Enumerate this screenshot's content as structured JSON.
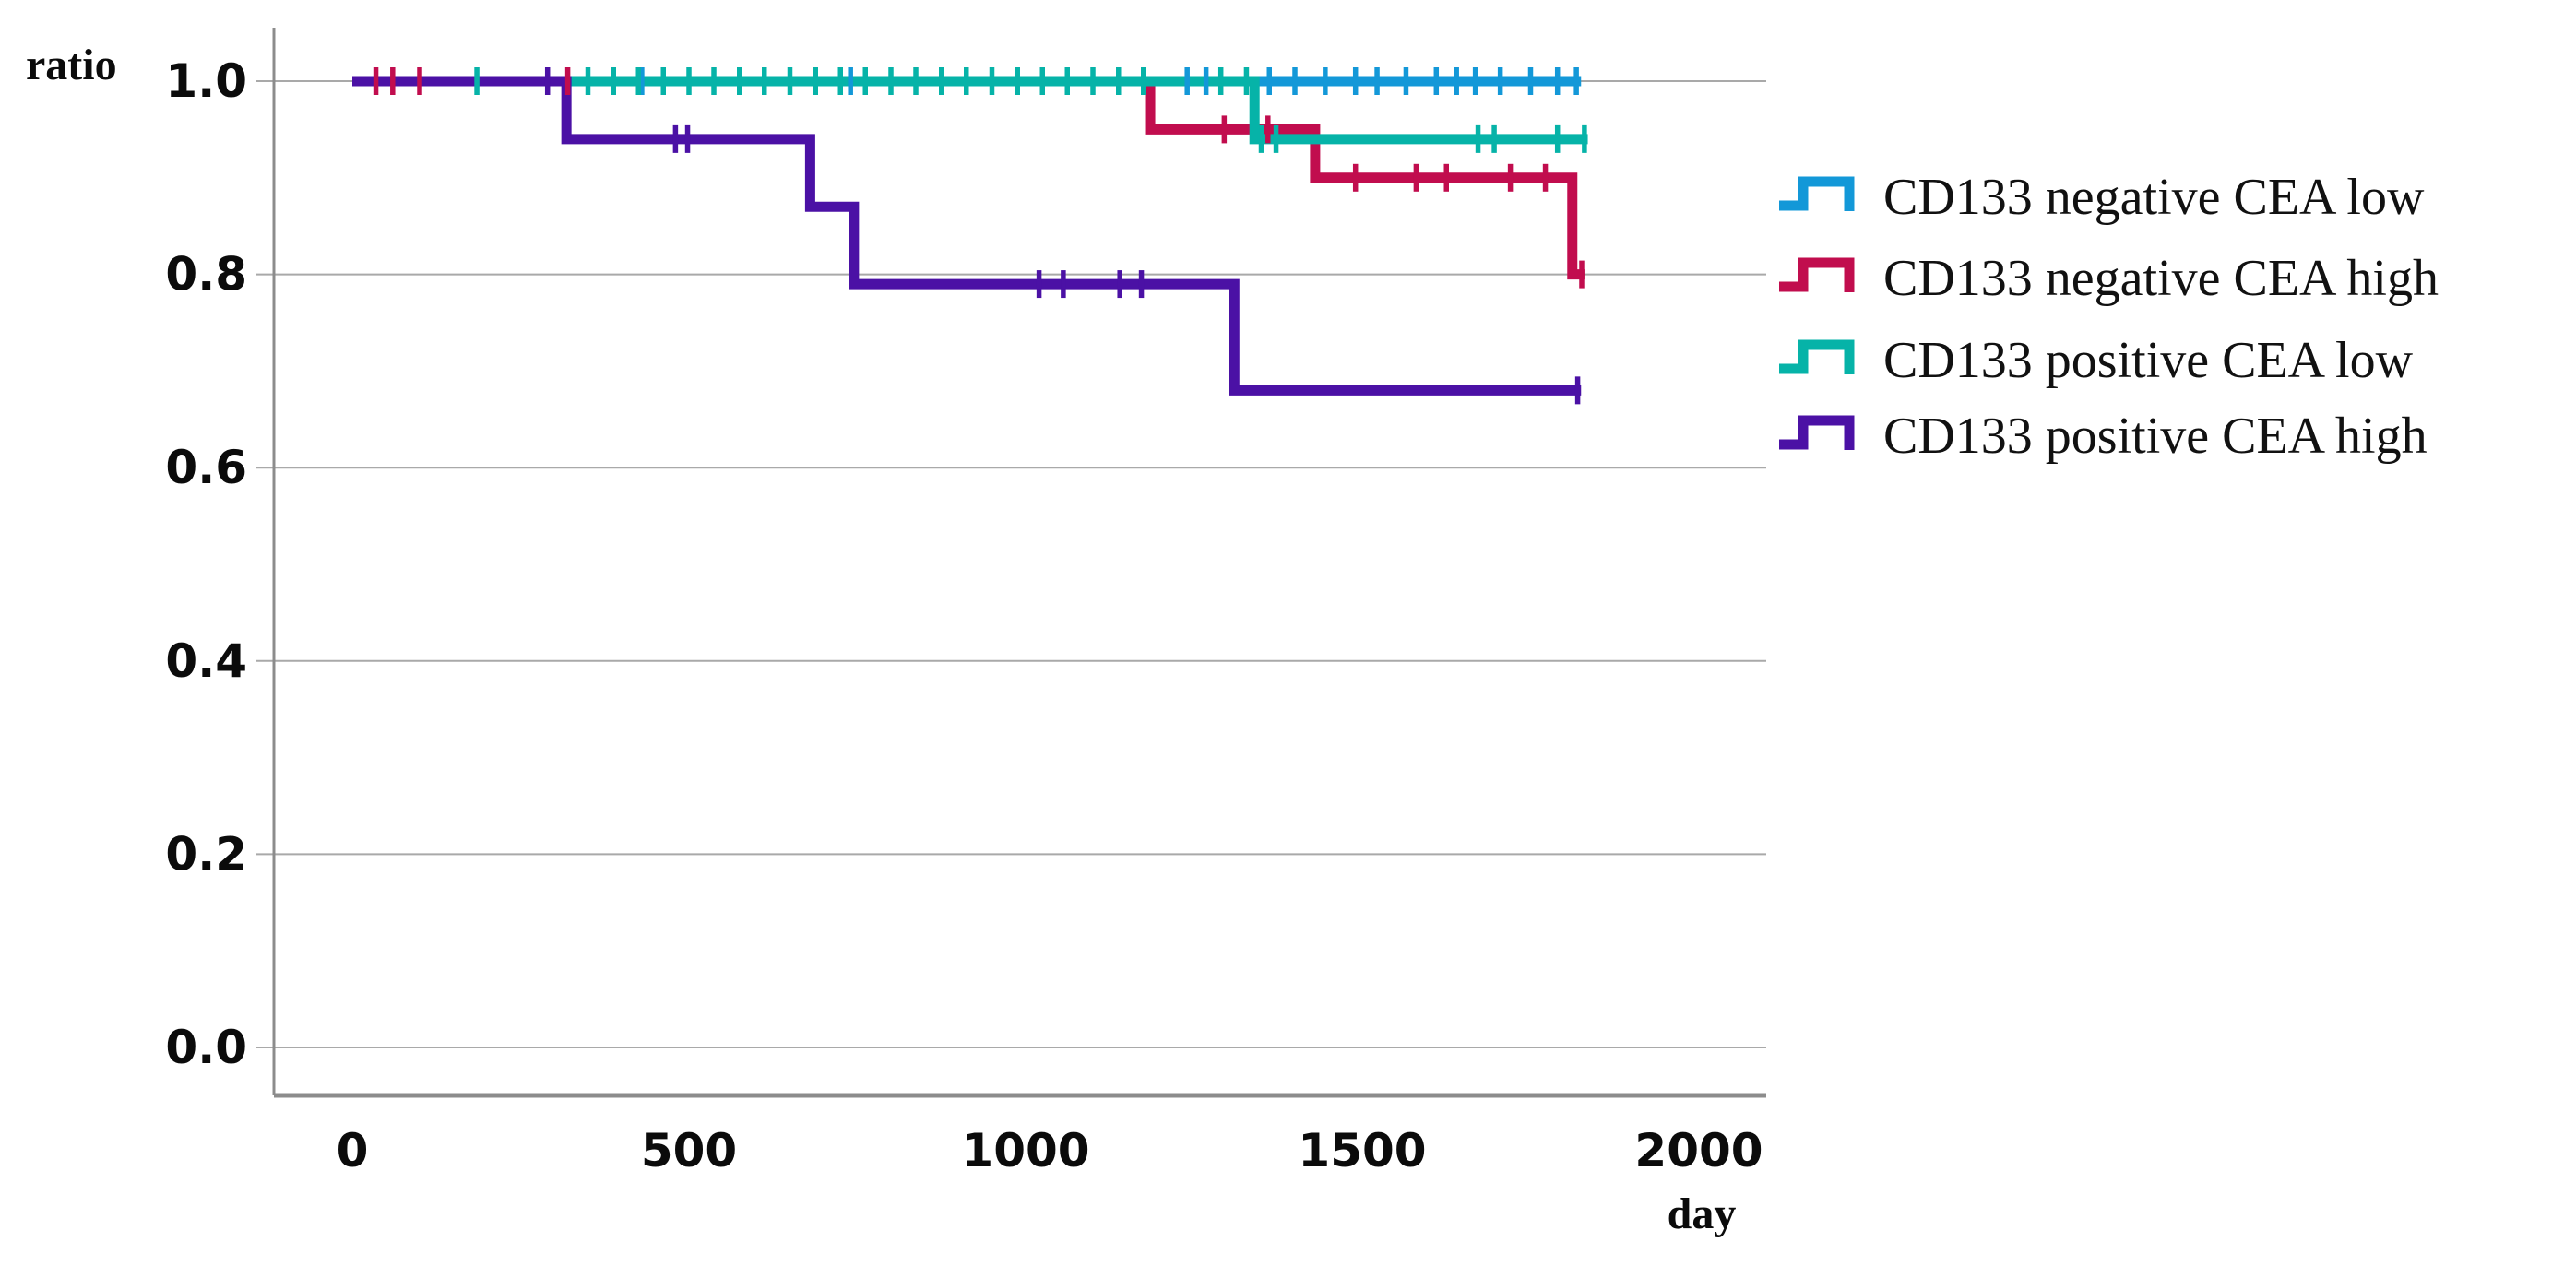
{
  "figure": {
    "y_axis_label": "ratio",
    "x_axis_label": "day",
    "background": "#ffffff",
    "grid_color": "#a9a9a9",
    "axis_color": "#8c8c8c",
    "text_color": "#0b0b0b"
  },
  "chart_data": {
    "type": "line",
    "subtype": "kaplan_meier_step",
    "title": "",
    "xlabel": "day",
    "ylabel": "ratio",
    "xlim": [
      0,
      2100
    ],
    "ylim": [
      0.0,
      1.0
    ],
    "grid": true,
    "legend_position": "right",
    "x_ticks": {
      "values": [
        0,
        500,
        1000,
        1500,
        2000
      ],
      "labels": [
        "0",
        "500",
        "1000",
        "1500",
        "2000"
      ]
    },
    "y_ticks": {
      "values": [
        1.0,
        0.8,
        0.6,
        0.4,
        0.2,
        0.0
      ],
      "labels": [
        "1.0",
        "0.8",
        "0.6",
        "0.4",
        "0.2",
        "0.0"
      ]
    },
    "series": [
      {
        "name": "CD133 negative CEA low",
        "color": "#1398d8",
        "steps": [
          [
            0,
            1.0
          ],
          [
            1825,
            1.0
          ]
        ],
        "censors": [
          [
            430,
            1.0
          ],
          [
            740,
            1.0
          ],
          [
            1240,
            1.0
          ],
          [
            1268,
            1.0
          ],
          [
            1362,
            1.0
          ],
          [
            1400,
            1.0
          ],
          [
            1445,
            1.0
          ],
          [
            1490,
            1.0
          ],
          [
            1522,
            1.0
          ],
          [
            1565,
            1.0
          ],
          [
            1610,
            1.0
          ],
          [
            1640,
            1.0
          ],
          [
            1668,
            1.0
          ],
          [
            1705,
            1.0
          ],
          [
            1750,
            1.0
          ],
          [
            1790,
            1.0
          ],
          [
            1818,
            1.0
          ]
        ]
      },
      {
        "name": "CD133 negative CEA high",
        "color": "#c10d4e",
        "steps": [
          [
            0,
            1.0
          ],
          [
            1185,
            0.95
          ],
          [
            1430,
            0.9
          ],
          [
            1812,
            0.8
          ],
          [
            1830,
            0.8
          ]
        ],
        "censors": [
          [
            35,
            1.0
          ],
          [
            60,
            1.0
          ],
          [
            100,
            1.0
          ],
          [
            320,
            1.0
          ],
          [
            1295,
            0.95
          ],
          [
            1360,
            0.95
          ],
          [
            1490,
            0.9
          ],
          [
            1580,
            0.9
          ],
          [
            1625,
            0.9
          ],
          [
            1720,
            0.9
          ],
          [
            1772,
            0.9
          ],
          [
            1826,
            0.8
          ]
        ]
      },
      {
        "name": "CD133 positive CEA low",
        "color": "#06b3a8",
        "steps": [
          [
            0,
            1.0
          ],
          [
            1340,
            0.94
          ],
          [
            1835,
            0.94
          ]
        ],
        "censors": [
          [
            185,
            1.0
          ],
          [
            350,
            1.0
          ],
          [
            388,
            1.0
          ],
          [
            425,
            1.0
          ],
          [
            462,
            1.0
          ],
          [
            500,
            1.0
          ],
          [
            537,
            1.0
          ],
          [
            575,
            1.0
          ],
          [
            612,
            1.0
          ],
          [
            650,
            1.0
          ],
          [
            688,
            1.0
          ],
          [
            725,
            1.0
          ],
          [
            762,
            1.0
          ],
          [
            800,
            1.0
          ],
          [
            837,
            1.0
          ],
          [
            875,
            1.0
          ],
          [
            912,
            1.0
          ],
          [
            950,
            1.0
          ],
          [
            988,
            1.0
          ],
          [
            1025,
            1.0
          ],
          [
            1062,
            1.0
          ],
          [
            1100,
            1.0
          ],
          [
            1138,
            1.0
          ],
          [
            1175,
            1.0
          ],
          [
            1290,
            1.0
          ],
          [
            1328,
            1.0
          ],
          [
            1350,
            0.94
          ],
          [
            1372,
            0.94
          ],
          [
            1672,
            0.94
          ],
          [
            1696,
            0.94
          ],
          [
            1790,
            0.94
          ],
          [
            1830,
            0.94
          ]
        ]
      },
      {
        "name": "CD133 positive CEA high",
        "color": "#4b11a5",
        "steps": [
          [
            0,
            1.0
          ],
          [
            318,
            0.94
          ],
          [
            680,
            0.87
          ],
          [
            745,
            0.79
          ],
          [
            1310,
            0.68
          ],
          [
            1825,
            0.68
          ]
        ],
        "censors": [
          [
            290,
            1.0
          ],
          [
            480,
            0.94
          ],
          [
            498,
            0.94
          ],
          [
            1020,
            0.79
          ],
          [
            1056,
            0.79
          ],
          [
            1140,
            0.79
          ],
          [
            1172,
            0.79
          ],
          [
            1820,
            0.68
          ]
        ]
      }
    ]
  }
}
